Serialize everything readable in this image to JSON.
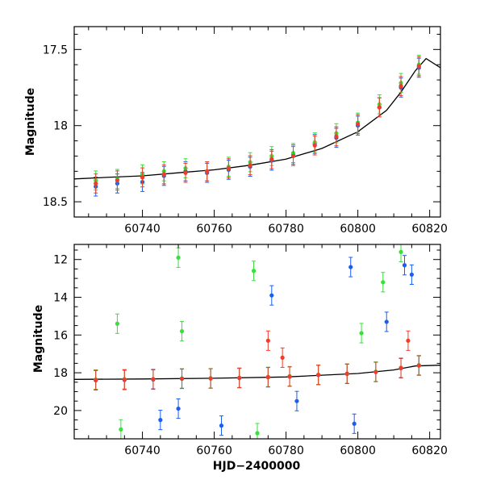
{
  "chart_data": [
    {
      "type": "scatter",
      "panel": "top",
      "title": "",
      "xlabel": "",
      "ylabel": "Magnitude",
      "xlim": [
        60721,
        60823
      ],
      "ylim": [
        18.6,
        17.35
      ],
      "y_inverted": true,
      "xticks": [
        "60740",
        "60760",
        "60780",
        "60800",
        "60820"
      ],
      "yticks": [
        "17.5",
        "18",
        "18.5"
      ],
      "model_curve": {
        "color": "#000000",
        "x": [
          60721,
          60730,
          60740,
          60750,
          60760,
          60770,
          60780,
          60790,
          60800,
          60808,
          60812,
          60816,
          60819,
          60823
        ],
        "y": [
          18.35,
          18.34,
          18.33,
          18.31,
          18.29,
          18.26,
          18.22,
          18.15,
          18.04,
          17.9,
          17.78,
          17.64,
          17.56,
          17.62
        ]
      },
      "series": [
        {
          "color": "#1a5ef0",
          "x": [
            60727,
            60733,
            60740,
            60746,
            60752,
            60758,
            60764,
            60770,
            60776,
            60782,
            60788,
            60794,
            60800,
            60806,
            60812,
            60817
          ],
          "y": [
            18.4,
            18.38,
            18.37,
            18.33,
            18.3,
            18.31,
            18.29,
            18.27,
            18.23,
            18.19,
            18.12,
            18.08,
            18.0,
            17.88,
            17.75,
            17.62
          ]
        },
        {
          "color": "#38e03a",
          "x": [
            60727,
            60733,
            60740,
            60746,
            60752,
            60758,
            60764,
            60770,
            60776,
            60782,
            60788,
            60794,
            60800,
            60806,
            60812,
            60817
          ],
          "y": [
            18.36,
            18.35,
            18.32,
            18.3,
            18.28,
            18.3,
            18.27,
            18.24,
            18.2,
            18.18,
            18.11,
            18.05,
            17.98,
            17.86,
            17.72,
            17.6
          ]
        },
        {
          "color": "#f03c28",
          "x": [
            60727,
            60733,
            60740,
            60746,
            60752,
            60758,
            60764,
            60770,
            60776,
            60782,
            60788,
            60794,
            60800,
            60806,
            60812,
            60817
          ],
          "y": [
            18.38,
            18.36,
            18.34,
            18.32,
            18.31,
            18.3,
            18.28,
            18.26,
            18.22,
            18.2,
            18.13,
            18.07,
            17.99,
            17.88,
            17.74,
            17.61
          ]
        }
      ]
    },
    {
      "type": "scatter",
      "panel": "bottom",
      "title": "",
      "xlabel": "HJD−2400000",
      "ylabel": "Magnitude",
      "xlim": [
        60721,
        60823
      ],
      "ylim": [
        21.5,
        11.2
      ],
      "y_inverted": true,
      "xticks": [
        "60740",
        "60760",
        "60780",
        "60800",
        "60820"
      ],
      "yticks": [
        "12",
        "14",
        "16",
        "18",
        "20"
      ],
      "model_curve": {
        "color": "#000000",
        "x": [
          60721,
          60740,
          60760,
          60780,
          60800,
          60810,
          60816,
          60823
        ],
        "y": [
          18.35,
          18.33,
          18.29,
          18.22,
          18.04,
          17.85,
          17.64,
          17.6
        ]
      },
      "series": [
        {
          "color": "#1a5ef0",
          "x": [
            60727,
            60735,
            60743,
            60751,
            60759,
            60767,
            60775,
            60781,
            60789,
            60797,
            60805,
            60812,
            60817,
            60745,
            60750,
            60762,
            60776,
            60783,
            60798,
            60799,
            60808,
            60813,
            60815
          ],
          "y": [
            18.4,
            18.38,
            18.36,
            18.32,
            18.3,
            18.28,
            18.24,
            18.2,
            18.12,
            18.06,
            17.95,
            17.76,
            17.62,
            20.5,
            19.9,
            20.8,
            13.9,
            19.5,
            12.4,
            20.7,
            15.3,
            12.3,
            12.8
          ]
        },
        {
          "color": "#38e03a",
          "x": [
            60727,
            60735,
            60743,
            60751,
            60759,
            60767,
            60775,
            60781,
            60789,
            60797,
            60805,
            60812,
            60817,
            60733,
            60734,
            60750,
            60751,
            60771,
            60772,
            60801,
            60807,
            60812
          ],
          "y": [
            18.36,
            18.34,
            18.33,
            18.3,
            18.29,
            18.26,
            18.22,
            18.18,
            18.1,
            18.04,
            17.94,
            17.73,
            17.6,
            15.4,
            21.0,
            11.9,
            15.8,
            12.6,
            21.2,
            15.9,
            13.2,
            11.6
          ]
        },
        {
          "color": "#f03c28",
          "x": [
            60727,
            60735,
            60743,
            60751,
            60759,
            60767,
            60775,
            60781,
            60789,
            60797,
            60805,
            60812,
            60817,
            60775,
            60779,
            60814
          ],
          "y": [
            18.38,
            18.36,
            18.34,
            18.31,
            18.3,
            18.27,
            18.23,
            18.2,
            18.11,
            18.05,
            17.96,
            17.75,
            17.61,
            16.3,
            17.2,
            16.3
          ]
        }
      ]
    }
  ]
}
